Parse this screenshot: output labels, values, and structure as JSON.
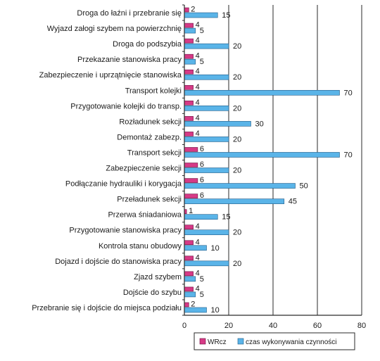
{
  "chart_data": {
    "type": "bar",
    "orientation": "horizontal",
    "categories": [
      "Droga do łaźni i przebranie się",
      "Wyjazd załogi szybem na powierzchnię",
      "Droga do podszybia",
      "Przekazanie stanowiska pracy",
      "Zabezpieczenie i uprzątnięcie stanowiska",
      "Transport kolejki",
      "Przygotowanie kolejki do transp.",
      "Rozładunek sekcji",
      "Demontaż zabezp.",
      "Transport sekcji",
      "Zabezpieczenie sekcji",
      "Podłączanie hydrauliki i korygacja",
      "Przeładunek sekcji",
      "Przerwa śniadaniowa",
      "Przygotowanie stanowiska pracy",
      "Kontrola stanu obudowy",
      "Dojazd i dojście do stanowiska pracy",
      "Zjazd szybem",
      "Dojście do szybu",
      "Przebranie się  i dojście do miejsca podziału"
    ],
    "series": [
      {
        "name": "WRcz",
        "color": "#d63a86",
        "values": [
          2,
          4,
          4,
          4,
          4,
          4,
          4,
          4,
          4,
          6,
          6,
          6,
          6,
          1,
          4,
          4,
          4,
          4,
          4,
          2
        ]
      },
      {
        "name": "czas wykonywania czynności",
        "color": "#5ab4e8",
        "values": [
          15,
          5,
          20,
          5,
          20,
          70,
          20,
          30,
          20,
          70,
          20,
          50,
          45,
          15,
          20,
          10,
          20,
          5,
          5,
          10
        ]
      }
    ],
    "xlim": [
      0,
      80
    ],
    "xticks": [
      "0",
      "20",
      "40",
      "60",
      "80"
    ],
    "grid": true,
    "legend_position": "bottom"
  }
}
